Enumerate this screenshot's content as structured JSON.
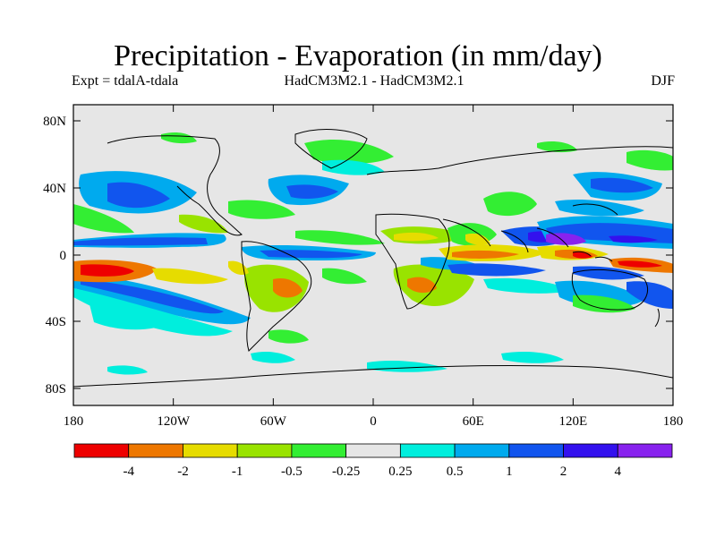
{
  "title": "Precipitation - Evaporation (in mm/day)",
  "expt_label": "Expt = tdalA-tdala",
  "model_label": "HadCM3M2.1 - HadCM3M2.1",
  "season_label": "DJF",
  "map": {
    "lat_ticks": [
      "80N",
      "40N",
      "0",
      "40S",
      "80S"
    ],
    "lon_ticks": [
      "180",
      "120W",
      "60W",
      "0",
      "60E",
      "120E",
      "180"
    ]
  },
  "colorbar": {
    "colors": [
      "#ee0000",
      "#ee7700",
      "#e6dc00",
      "#99e300",
      "#33ee33",
      "#e6e6e6",
      "#00eedd",
      "#00aaee",
      "#1155ee",
      "#3311ee",
      "#8822ee"
    ],
    "labels": [
      "-4",
      "-2",
      "-1",
      "-0.5",
      "-0.25",
      "0.25",
      "0.5",
      "1",
      "2",
      "4"
    ]
  },
  "colors": {
    "land_line": "#000000",
    "background": "#e6e6e6"
  }
}
